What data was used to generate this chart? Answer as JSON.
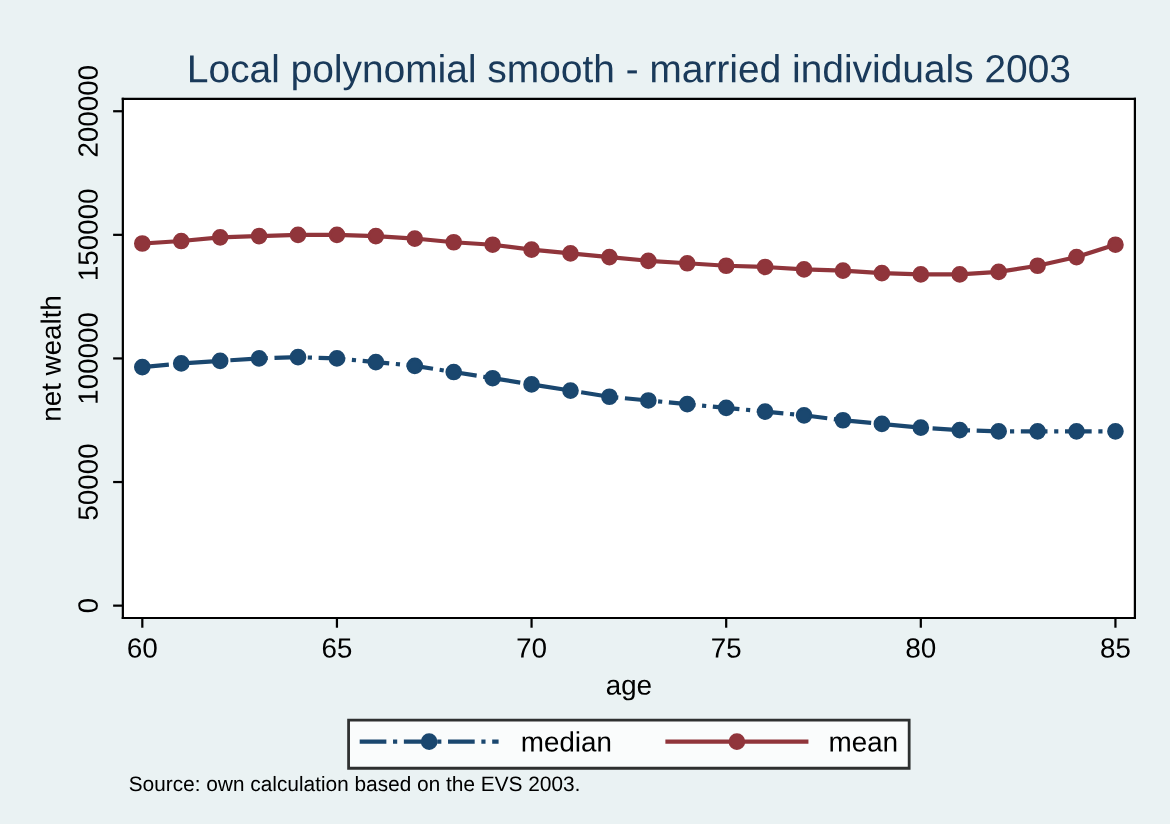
{
  "chart_data": {
    "type": "line",
    "title": "Local polynomial smooth - married individuals 2003",
    "xlabel": "age",
    "ylabel": "net wealth",
    "x": [
      60,
      61,
      62,
      63,
      64,
      65,
      66,
      67,
      68,
      69,
      70,
      71,
      72,
      73,
      74,
      75,
      76,
      77,
      78,
      79,
      80,
      81,
      82,
      83,
      84,
      85
    ],
    "series": [
      {
        "name": "median",
        "color": "#1a476f",
        "line_style": "dashdot",
        "values": [
          96500,
          98000,
          99000,
          100000,
          100500,
          100000,
          98500,
          97000,
          94500,
          92000,
          89500,
          87000,
          84500,
          83000,
          81500,
          80000,
          78500,
          77000,
          75000,
          73500,
          72000,
          71000,
          70500,
          70500,
          70500,
          70500
        ]
      },
      {
        "name": "mean",
        "color": "#90353b",
        "line_style": "solid",
        "values": [
          146500,
          147500,
          149000,
          149500,
          150000,
          150000,
          149500,
          148500,
          147000,
          146000,
          144000,
          142500,
          141000,
          139500,
          138500,
          137500,
          137000,
          136000,
          135500,
          134500,
          134000,
          134000,
          135000,
          137500,
          141000,
          146000
        ]
      }
    ],
    "xlim": [
      59.5,
      85.5
    ],
    "xticks": [
      60,
      65,
      70,
      75,
      80,
      85
    ],
    "ylim": [
      -5000,
      205000
    ],
    "yticks": [
      0,
      50000,
      100000,
      150000,
      200000
    ],
    "marker": "circle",
    "grid": false,
    "legend": "bottom",
    "annotations": [
      "Source: own calculation based on the EVS 2003."
    ]
  }
}
